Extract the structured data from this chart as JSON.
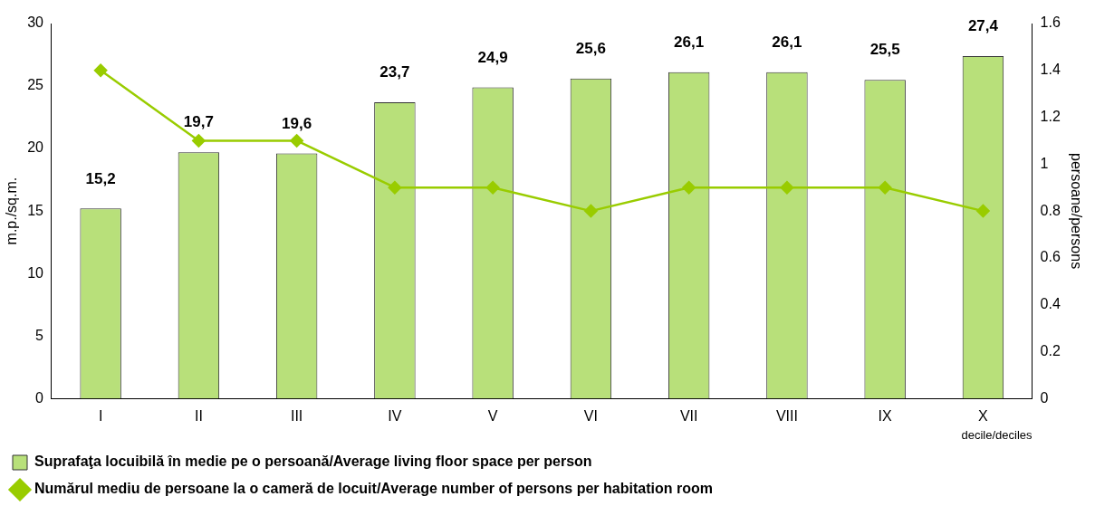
{
  "chart_data": {
    "type": "bar",
    "xlabel": "decile/deciles",
    "ylabel": "m.p./sq.m.",
    "y2label": "persoane/persons",
    "categories": [
      "I",
      "II",
      "III",
      "IV",
      "V",
      "VI",
      "VII",
      "VIII",
      "IX",
      "X"
    ],
    "series": [
      {
        "name": "Suprafaţa locuibilă în medie pe o persoană/Average living floor space per person",
        "color": "#b8e07a",
        "values": [
          15.2,
          19.7,
          19.6,
          23.7,
          24.9,
          25.6,
          26.1,
          26.1,
          25.5,
          27.4
        ],
        "value_labels": [
          "15,2",
          "19,7",
          "19,6",
          "23,7",
          "24,9",
          "25,6",
          "26,1",
          "26,1",
          "25,5",
          "27,4"
        ]
      },
      {
        "type": "line",
        "axis": "y2",
        "name": "Numărul mediu de persoane la o cameră de locuit/Average number of persons per habitation room",
        "color": "#99cc00",
        "marker": "diamond",
        "values": [
          1.4,
          1.1,
          1.1,
          0.9,
          0.9,
          0.8,
          0.9,
          0.9,
          0.9,
          0.8
        ]
      }
    ],
    "ylim": [
      0,
      30
    ],
    "yticks": [
      0,
      5,
      10,
      15,
      20,
      25,
      30
    ],
    "y2lim": [
      0,
      1.6
    ],
    "y2ticks": [
      0,
      {
        "value": 0.2,
        "label": "0.2"
      },
      {
        "value": 0.4,
        "label": "0.4"
      },
      {
        "value": 0.6,
        "label": "0.6"
      },
      {
        "value": 0.8,
        "label": "0.8"
      },
      1,
      {
        "value": 1.2,
        "label": "1.2"
      },
      {
        "value": 1.4,
        "label": "1.4"
      },
      {
        "value": 1.6,
        "label": "1.6"
      }
    ],
    "grid": false,
    "legend": "bottom"
  }
}
